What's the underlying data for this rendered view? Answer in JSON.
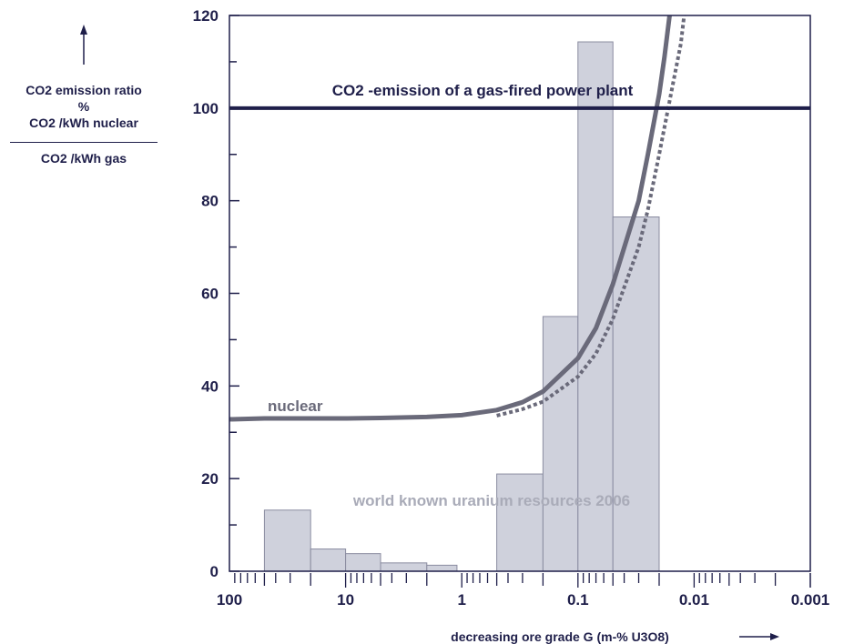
{
  "chart_data": {
    "type": "bar",
    "x_scale": "log",
    "x_reversed": true,
    "xlim": [
      100,
      0.001
    ],
    "ylim": [
      0,
      120
    ],
    "ytick_values": [
      0,
      20,
      40,
      60,
      80,
      100,
      120
    ],
    "xtick_values": [
      100,
      10,
      1,
      0.1,
      0.01,
      0.001
    ],
    "xtick_labels": [
      "100",
      "10",
      "1",
      "0.1",
      "0.01",
      "0.001"
    ],
    "ylabel": {
      "main": "CO2 emission ratio",
      "unit": "%",
      "numerator": "CO2 /kWh nuclear",
      "denominator": "CO2 /kWh gas"
    },
    "xlabel": "decreasing ore grade G (m-% U3O8)",
    "bars_label": "world known uranium resources 2006",
    "bars": [
      {
        "x_from": 50,
        "x_to": 20,
        "value": 13.2
      },
      {
        "x_from": 20,
        "x_to": 10,
        "value": 4.8
      },
      {
        "x_from": 10,
        "x_to": 5,
        "value": 3.8
      },
      {
        "x_from": 5,
        "x_to": 2,
        "value": 1.8
      },
      {
        "x_from": 2,
        "x_to": 1.1,
        "value": 1.3
      },
      {
        "x_from": 0.5,
        "x_to": 0.2,
        "value": 21
      },
      {
        "x_from": 0.2,
        "x_to": 0.1,
        "value": 55
      },
      {
        "x_from": 0.1,
        "x_to": 0.05,
        "value": 114.3
      },
      {
        "x_from": 0.05,
        "x_to": 0.02,
        "value": 76.5
      }
    ],
    "reference_line": {
      "label": "CO2 -emission of a gas-fired power plant",
      "value": 100,
      "color": "#1f1f4a"
    },
    "series": [
      {
        "name": "nuclear",
        "style": "solid",
        "color": "#6a6a7a",
        "points": [
          [
            100,
            32.8
          ],
          [
            50,
            33
          ],
          [
            20,
            33
          ],
          [
            10,
            33
          ],
          [
            5,
            33.1
          ],
          [
            2,
            33.3
          ],
          [
            1,
            33.7
          ],
          [
            0.5,
            34.8
          ],
          [
            0.3,
            36.5
          ],
          [
            0.2,
            38.8
          ],
          [
            0.1,
            46
          ],
          [
            0.07,
            52.5
          ],
          [
            0.05,
            62
          ],
          [
            0.03,
            80
          ],
          [
            0.025,
            90
          ],
          [
            0.02,
            103
          ],
          [
            0.018,
            111
          ],
          [
            0.016,
            121.5
          ]
        ]
      },
      {
        "style": "dotted",
        "color": "#6a6a7a",
        "points": [
          [
            0.5,
            33.6
          ],
          [
            0.3,
            35
          ],
          [
            0.2,
            36.6
          ],
          [
            0.1,
            42
          ],
          [
            0.07,
            47
          ],
          [
            0.05,
            54.5
          ],
          [
            0.03,
            70
          ],
          [
            0.025,
            78
          ],
          [
            0.02,
            90
          ],
          [
            0.015,
            106
          ],
          [
            0.013,
            114
          ],
          [
            0.012,
            121.5
          ]
        ]
      }
    ],
    "colors": {
      "axis": "#1f1f4a",
      "bar_fill": "#cfd1dc",
      "bar_stroke": "#8a8ca0",
      "bars_label": "#a9abb8"
    }
  }
}
